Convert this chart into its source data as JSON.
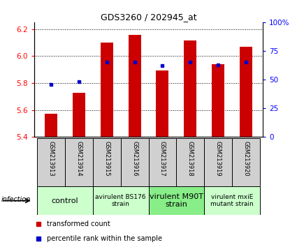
{
  "title": "GDS3260 / 202945_at",
  "samples": [
    "GSM213913",
    "GSM213914",
    "GSM213915",
    "GSM213916",
    "GSM213917",
    "GSM213918",
    "GSM213919",
    "GSM213920"
  ],
  "transformed_count": [
    5.575,
    5.73,
    6.1,
    6.155,
    5.895,
    6.115,
    5.94,
    6.07
  ],
  "percentile_rank": [
    46,
    48,
    65,
    65,
    62,
    65,
    63,
    65
  ],
  "bar_bottom": 5.4,
  "ylim_left": [
    5.4,
    6.25
  ],
  "ylim_right": [
    0,
    100
  ],
  "yticks_left": [
    5.4,
    5.6,
    5.8,
    6.0,
    6.2
  ],
  "yticks_right": [
    0,
    25,
    50,
    75,
    100
  ],
  "bar_color": "#cc0000",
  "dot_color": "#0000cc",
  "group_labels": [
    "control",
    "avirulent BS176\nstrain",
    "virulent M90T\nstrain",
    "virulent mxiE\nmutant strain"
  ],
  "group_ranges": [
    [
      0,
      2
    ],
    [
      2,
      4
    ],
    [
      4,
      6
    ],
    [
      6,
      8
    ]
  ],
  "group_colors": [
    "#ccffcc",
    "#ccffcc",
    "#88ee88",
    "#ccffcc"
  ],
  "sample_bg": "#d0d0d0",
  "legend_red_label": "transformed count",
  "legend_blue_label": "percentile rank within the sample",
  "infection_label": "infection",
  "bar_width": 0.45
}
